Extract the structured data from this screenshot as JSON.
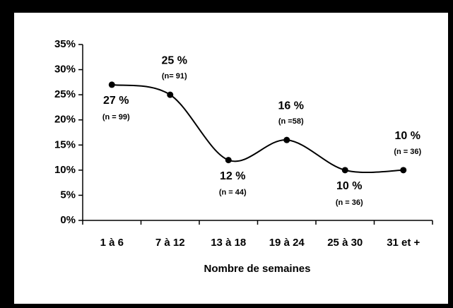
{
  "chart_data": {
    "type": "line",
    "x_label": "Nombre de semaines",
    "categories": [
      "1 à 6",
      "7 à 12",
      "13 à 18",
      "19 à 24",
      "25 à 30",
      "31 et +"
    ],
    "values": [
      27,
      25,
      12,
      16,
      10,
      10
    ],
    "value_labels": [
      "27 %",
      "25 %",
      "12 %",
      "16 %",
      "10 %",
      "10 %"
    ],
    "sample_labels": [
      "(n = 99)",
      "(n= 91)",
      "(n = 44)",
      "(n =58)",
      "(n = 36)",
      "(n = 36)"
    ],
    "color": "#000000",
    "smooth": true,
    "ylim": [
      0,
      35
    ],
    "yticks": [
      {
        "value": 0,
        "label": "0%"
      },
      {
        "value": 5,
        "label": "5%"
      },
      {
        "value": 10,
        "label": "10%"
      },
      {
        "value": 15,
        "label": "15%"
      },
      {
        "value": 20,
        "label": "20%"
      },
      {
        "value": 25,
        "label": "25%"
      },
      {
        "value": 30,
        "label": "30%"
      },
      {
        "value": 35,
        "label": "35%"
      }
    ]
  }
}
